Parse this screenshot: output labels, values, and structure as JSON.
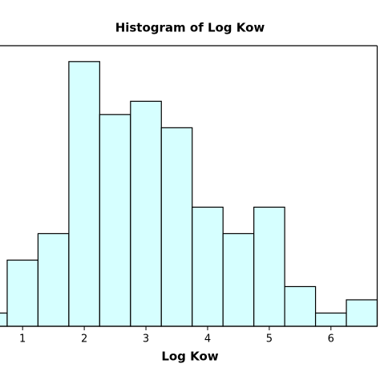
{
  "chart_data": {
    "type": "histogram",
    "title": "Histogram of Log Kow",
    "x_label": "Log Kow",
    "bins": [
      0.25,
      0.75,
      1.25,
      1.75,
      2.25,
      2.75,
      3.25,
      3.75,
      4.25,
      4.75,
      5.25,
      5.75,
      6.25,
      6.75
    ],
    "values": [
      1,
      5,
      7,
      20,
      16,
      17,
      15,
      9,
      7,
      9,
      3,
      1,
      2
    ],
    "color": "#d6ffff",
    "xlim": [
      0.25,
      6.75
    ],
    "xticks": [
      1,
      2,
      3,
      4,
      5,
      6
    ],
    "ylim": [
      0,
      21.2
    ]
  }
}
